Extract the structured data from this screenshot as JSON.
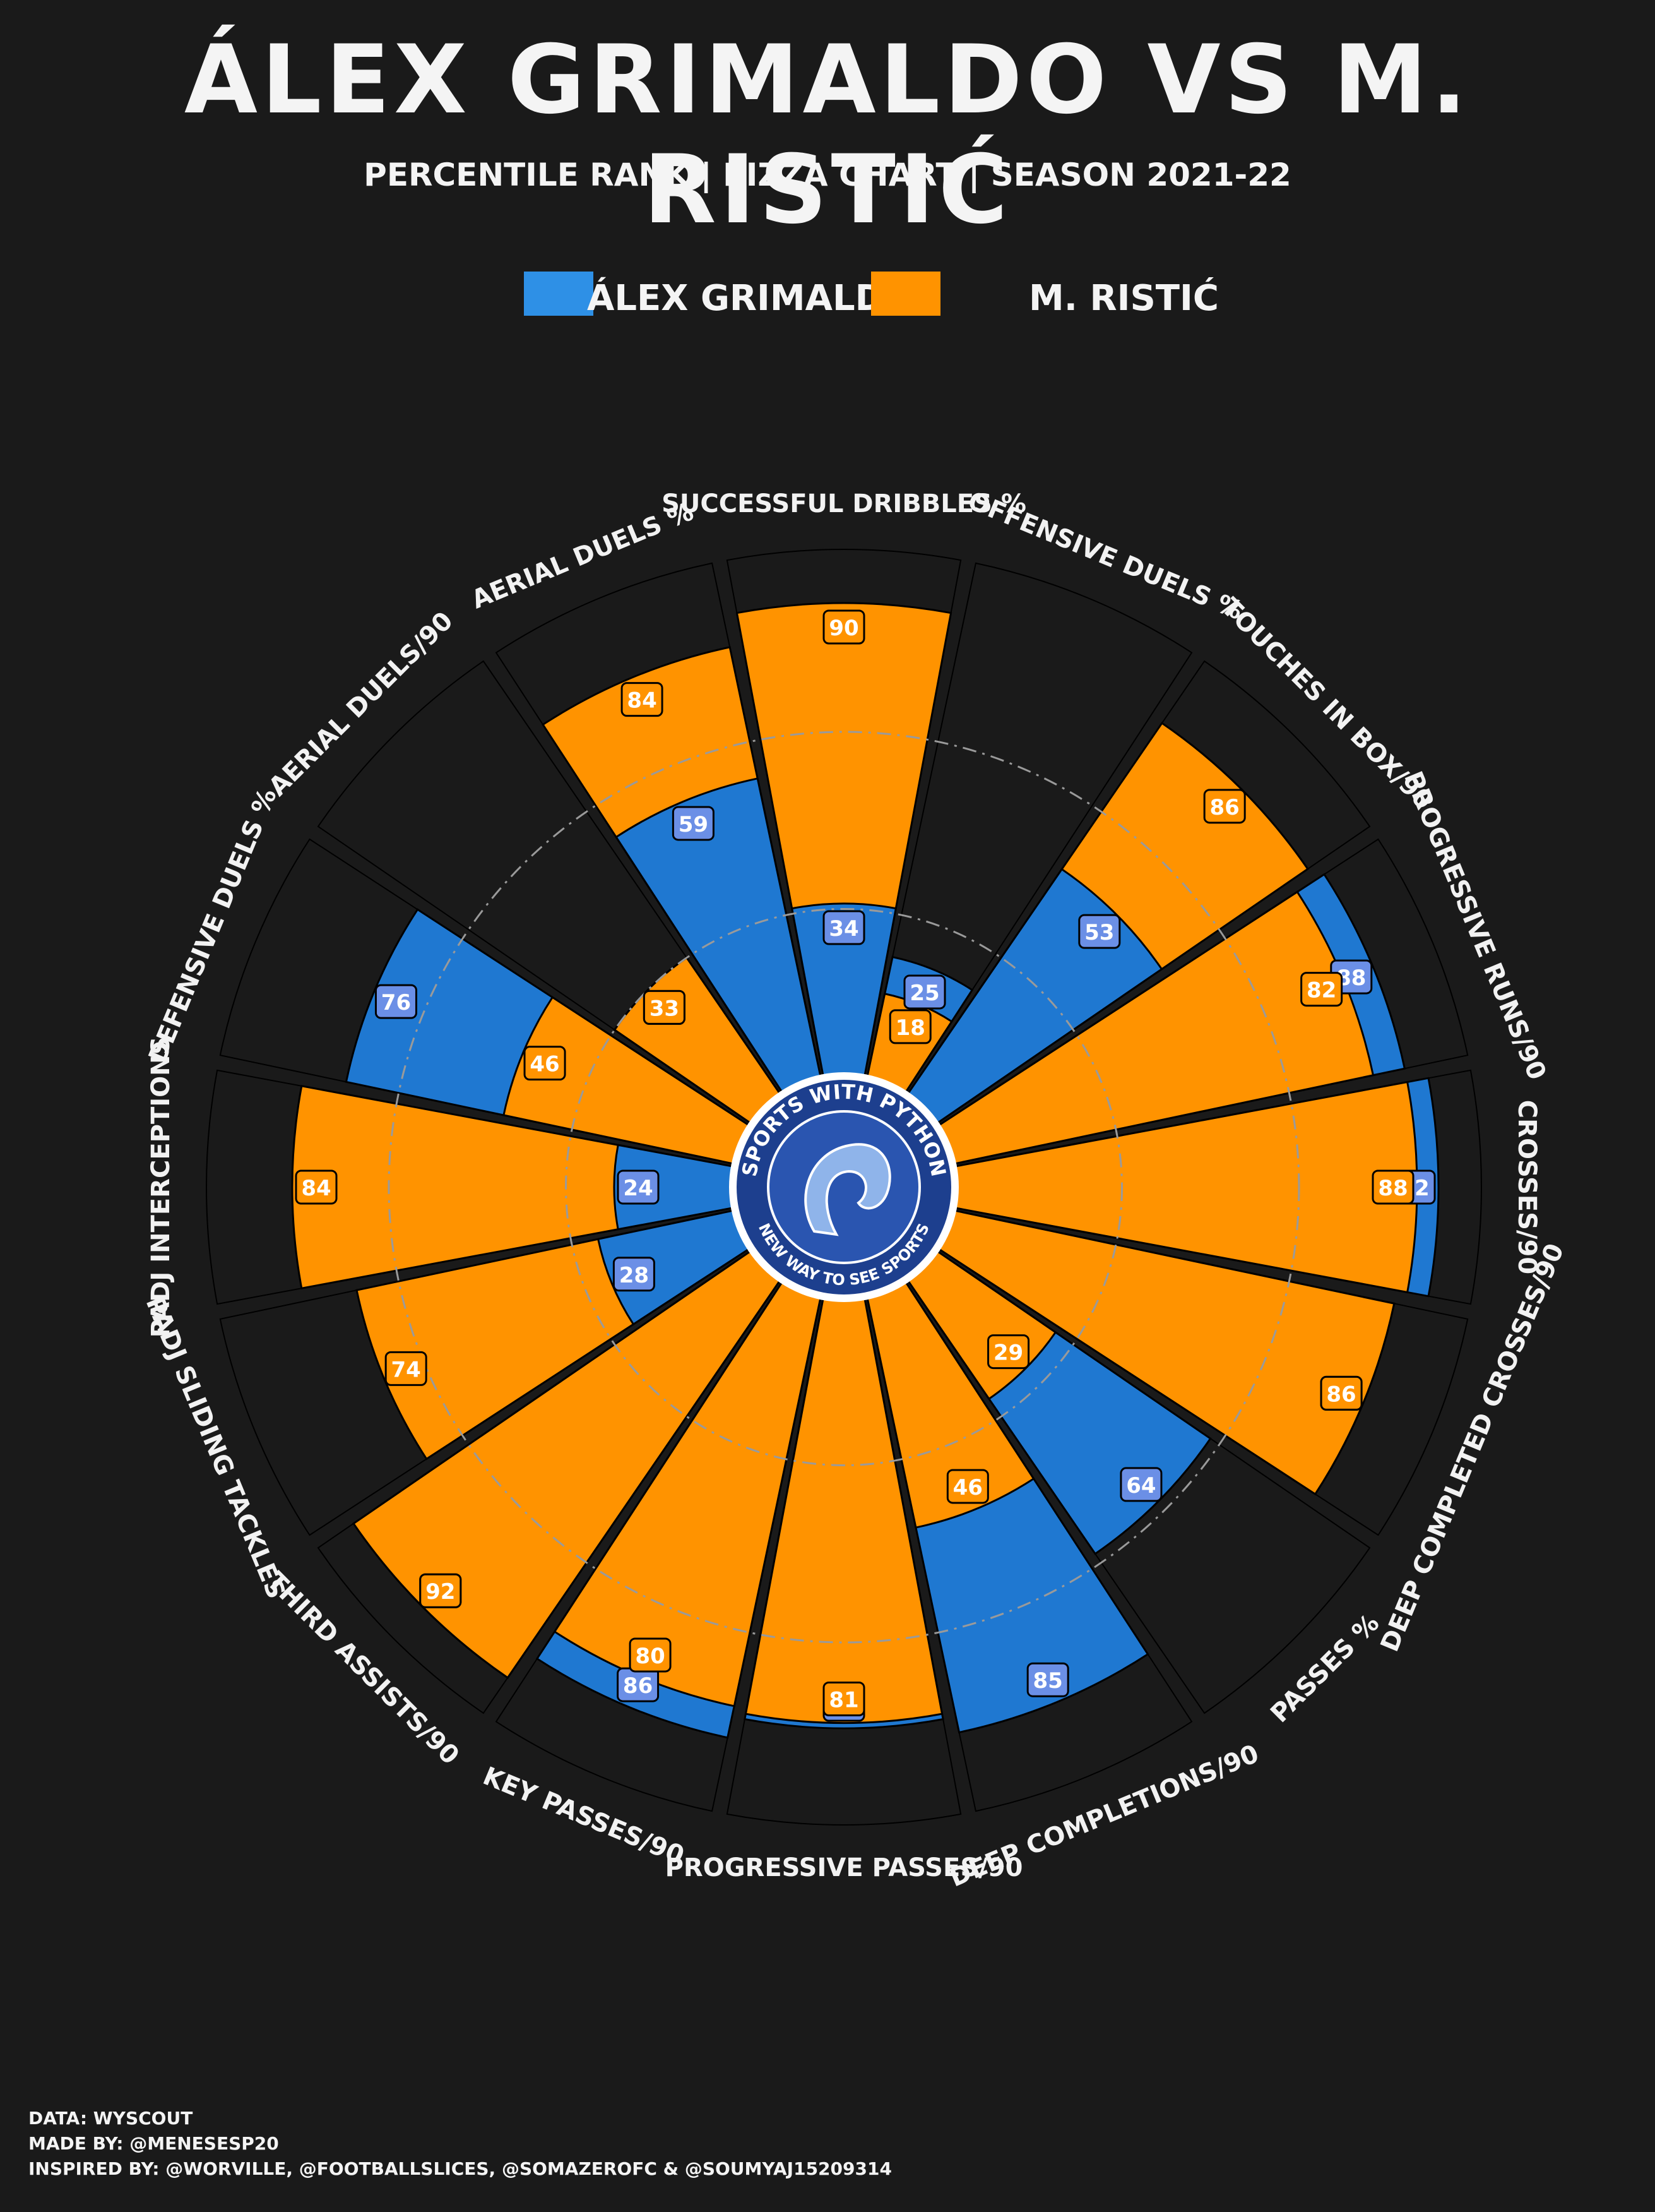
{
  "title": "ÁLEX GRIMALDO VS M. RISTIĆ",
  "subtitle": "PERCENTILE RANK | PIZZA CHART | SEASON 2021-22",
  "legend": {
    "player1": "ÁLEX GRIMALDO",
    "player2": "M. RISTIĆ"
  },
  "colors": {
    "background": "#1a1a1a",
    "player1": "#1f78d1",
    "player2": "#ff9300",
    "label_box_p1": "#6b8fe6",
    "slice_edge": "#000000",
    "logo_ring": "#1d3f8e"
  },
  "logo": {
    "top_text": "SPORTS WITH PYTHON",
    "bottom_text": "NEW WAY TO SEE SPORTS",
    "icon": "cobra-icon"
  },
  "chart_data": {
    "type": "pizza",
    "ylim": [
      0,
      100
    ],
    "categories": [
      "SUCCESSFUL DRIBBLES %",
      "OFFENSIVE DUELS %",
      "TOUCHES IN BOX/90",
      "PROGRESSIVE RUNS/90",
      "CROSSES/90",
      "DEEP COMPLETED CROSSES/90",
      "PASSES %",
      "DEEP COMPLETIONS/90",
      "PROGRESSIVE PASSES/90",
      "KEY PASSES/90",
      "THIRD ASSISTS/90",
      "PADJ SLIDING TACKLES",
      "PADJ INTERCEPTIONS",
      "DEFENSIVE DUELS %",
      "AERIAL DUELS/90",
      "AERIAL DUELS %"
    ],
    "series": [
      {
        "name": "ÁLEX GRIMALDO",
        "values": [
          34,
          25,
          53,
          88,
          92,
          86,
          64,
          85,
          82,
          86,
          92,
          28,
          24,
          76,
          33,
          59
        ]
      },
      {
        "name": "M. RISTIĆ",
        "values": [
          90,
          18,
          86,
          82,
          88,
          86,
          29,
          46,
          81,
          80,
          92,
          74,
          84,
          46,
          33,
          84
        ]
      }
    ]
  },
  "footer": {
    "line1": "DATA: WYSCOUT",
    "line2": "MADE BY: @MENESESP20",
    "line3": "INSPIRED BY: @WORVILLE, @FOOTBALLSLICES, @SOMAZEROFC & @SOUMYAJ15209314"
  }
}
